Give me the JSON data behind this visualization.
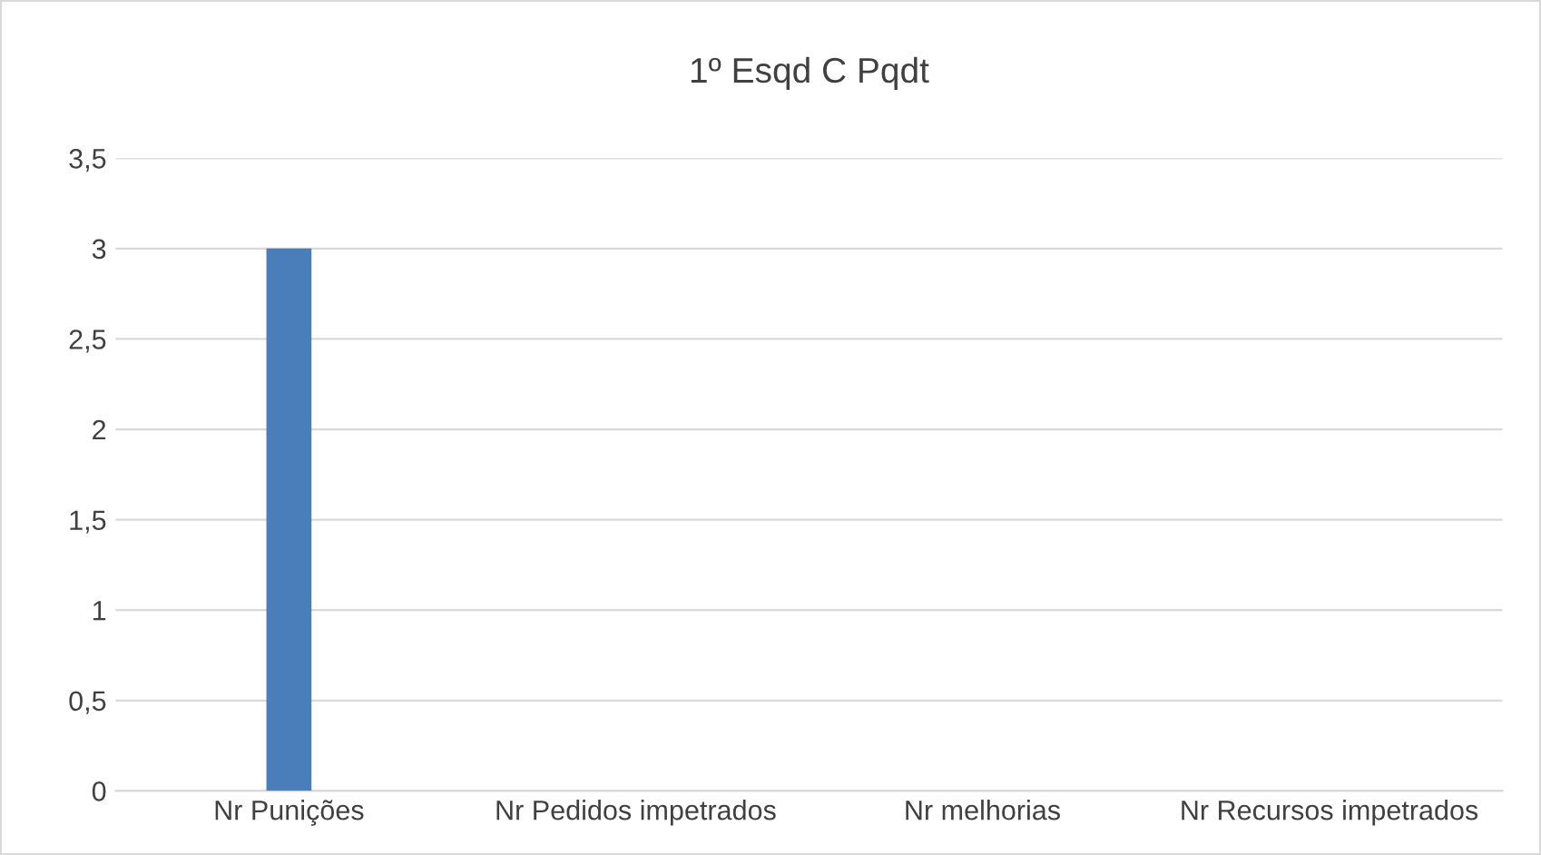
{
  "chart_data": {
    "type": "bar",
    "title": "1º Esqd C Pqdt",
    "categories": [
      "Nr Punições",
      "Nr Pedidos impetrados",
      "Nr melhorias",
      "Nr Recursos impetrados"
    ],
    "values": [
      3,
      0,
      0,
      0
    ],
    "color": "#4a7ebb",
    "ylim": [
      0,
      3.5
    ],
    "yticks": [
      0,
      {
        "value": 0.5,
        "label": "0,5"
      },
      1,
      {
        "value": 1.5,
        "label": "1,5"
      },
      2,
      {
        "value": 2.5,
        "label": "2,5"
      },
      3,
      {
        "value": 3.5,
        "label": "3,5"
      }
    ],
    "grid": "y"
  }
}
